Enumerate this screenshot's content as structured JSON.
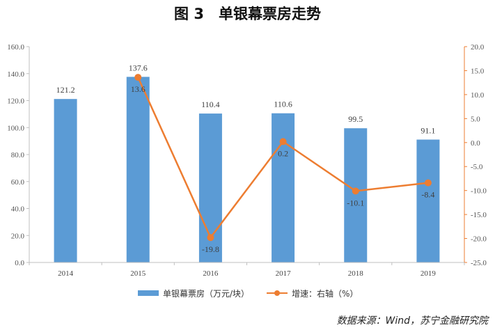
{
  "title": "图 3　单银幕票房走势",
  "source": "数据来源：Wind，苏宁金融研究院",
  "colors": {
    "bar": "#5B9BD5",
    "line": "#ED7D31",
    "axis_right": "#ED7D31"
  },
  "chart_data": {
    "type": "bar",
    "categories": [
      "2014",
      "2015",
      "2016",
      "2017",
      "2018",
      "2019"
    ],
    "series": [
      {
        "name": "单银幕票房（万元/块）",
        "type": "bar",
        "axis": "left",
        "values": [
          121.2,
          137.6,
          110.4,
          110.6,
          99.5,
          91.1
        ],
        "labels": [
          "121.2",
          "137.6",
          "110.4",
          "110.6",
          "99.5",
          "91.1"
        ]
      },
      {
        "name": "增速：右轴（%）",
        "type": "line",
        "axis": "right",
        "values": [
          null,
          13.6,
          -19.8,
          0.2,
          -10.1,
          -8.4
        ],
        "labels": [
          "",
          "13.6",
          "-19.8",
          "0.2",
          "-10.1",
          "-8.4"
        ]
      }
    ],
    "ylim": [
      0,
      160
    ],
    "y_ticks": [
      "0.0",
      "20.0",
      "40.0",
      "60.0",
      "80.0",
      "100.0",
      "120.0",
      "140.0",
      "160.0"
    ],
    "y2lim": [
      -25,
      20
    ],
    "y2_ticks": [
      "-25.0",
      "-20.0",
      "-15.0",
      "-10.0",
      "-5.0",
      "0.0",
      "5.0",
      "10.0",
      "15.0",
      "20.0"
    ],
    "grid": false,
    "legend_position": "bottom"
  }
}
